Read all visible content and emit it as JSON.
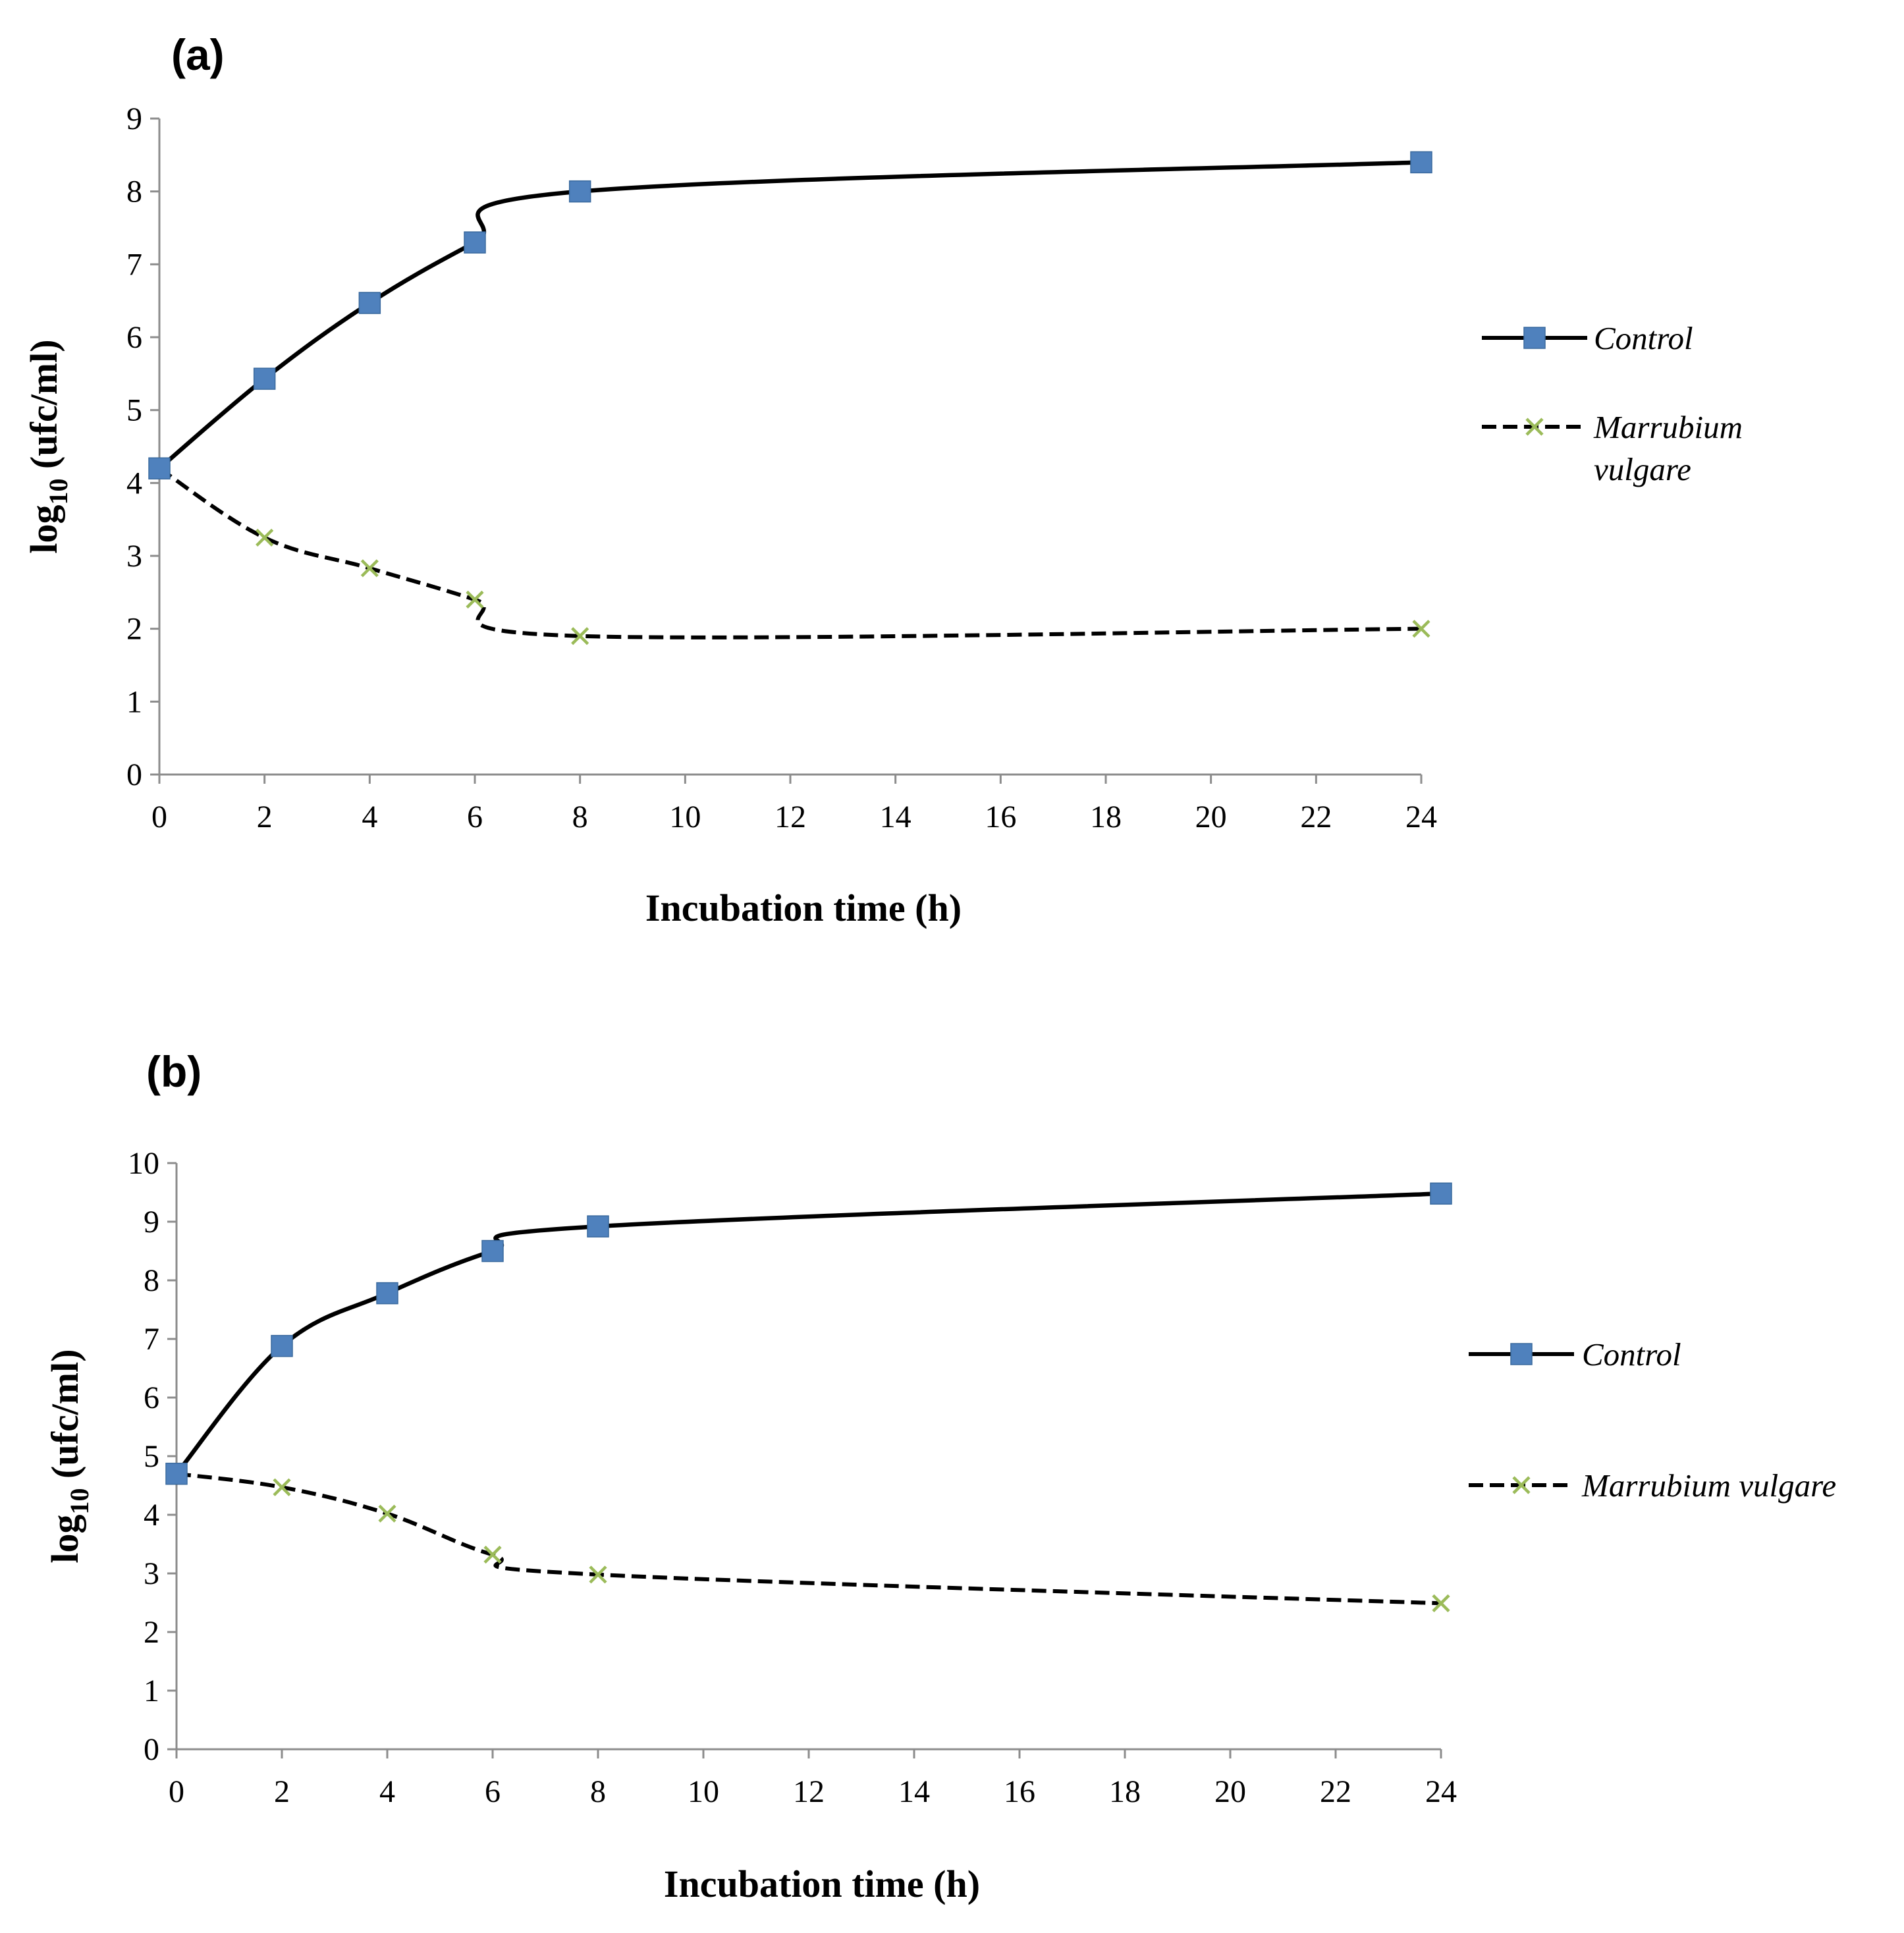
{
  "chart_data": [
    {
      "type": "line",
      "panel_label": "(a)",
      "xlabel": "Incubation time (h)",
      "ylabel_main": "log",
      "ylabel_sub": "10",
      "ylabel_tail": " (ufc/ml)",
      "xlim": [
        0,
        24
      ],
      "ylim": [
        0,
        9
      ],
      "xticks": [
        0,
        2,
        4,
        6,
        8,
        10,
        12,
        14,
        16,
        18,
        20,
        22,
        24
      ],
      "yticks": [
        0,
        1,
        2,
        3,
        4,
        5,
        6,
        7,
        8,
        9
      ],
      "x": [
        0,
        2,
        4,
        6,
        8,
        24
      ],
      "grid": false,
      "legend_position": "right",
      "series": [
        {
          "name": "Control",
          "values": [
            4.2,
            5.43,
            6.47,
            7.3,
            8.0,
            8.4
          ],
          "color": "#4f81bd",
          "line_color": "#000000",
          "marker": "square",
          "line_style": "solid",
          "legend_lines": [
            "Control"
          ]
        },
        {
          "name": "Marrubium vulgare",
          "values": [
            4.2,
            3.25,
            2.83,
            2.4,
            1.9,
            2.0
          ],
          "color": "#9bbb59",
          "line_color": "#000000",
          "marker": "x",
          "line_style": "dashed",
          "legend_lines": [
            "Marrubium",
            "vulgare"
          ]
        }
      ]
    },
    {
      "type": "line",
      "panel_label": "(b)",
      "xlabel": "Incubation time (h)",
      "ylabel_main": "log",
      "ylabel_sub": "10",
      "ylabel_tail": " (ufc/ml)",
      "xlim": [
        0,
        24
      ],
      "ylim": [
        0,
        10
      ],
      "xticks": [
        0,
        2,
        4,
        6,
        8,
        10,
        12,
        14,
        16,
        18,
        20,
        22,
        24
      ],
      "yticks": [
        0,
        1,
        2,
        3,
        4,
        5,
        6,
        7,
        8,
        9,
        10
      ],
      "x": [
        0,
        2,
        4,
        6,
        8,
        24
      ],
      "grid": false,
      "legend_position": "right",
      "series": [
        {
          "name": "Control",
          "values": [
            4.7,
            6.88,
            7.78,
            8.5,
            8.92,
            9.48
          ],
          "color": "#4f81bd",
          "line_color": "#000000",
          "marker": "square",
          "line_style": "solid",
          "legend_lines": [
            "Control"
          ]
        },
        {
          "name": "Marrubium vulgare",
          "values": [
            4.7,
            4.47,
            4.02,
            3.32,
            2.98,
            2.49
          ],
          "color": "#9bbb59",
          "line_color": "#000000",
          "marker": "x",
          "line_style": "dashed",
          "legend_lines": [
            "Marrubium vulgare"
          ]
        }
      ]
    }
  ]
}
